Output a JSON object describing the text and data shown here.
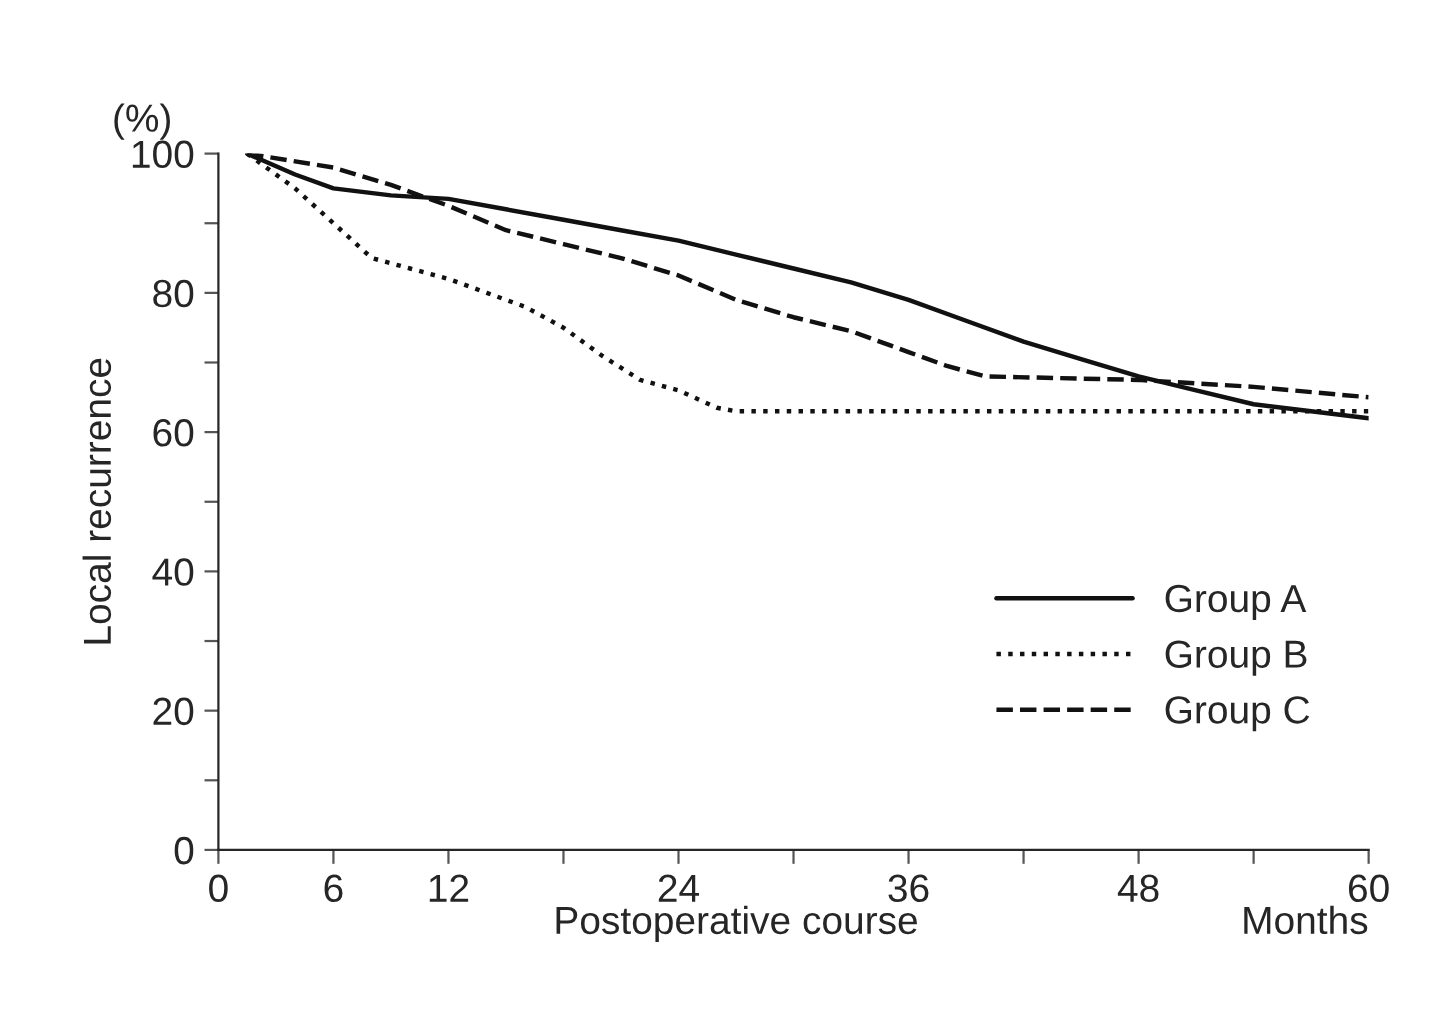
{
  "chart_data": {
    "type": "line",
    "xlabel": "Postoperative course",
    "ylabel": "Local recurrence",
    "annotations": [
      "(%)",
      "Months"
    ],
    "xlim": [
      0,
      60
    ],
    "ylim": [
      0,
      100
    ],
    "xticks": [
      0,
      6,
      12,
      {
        "value": 18,
        "label": null
      },
      24,
      {
        "value": 30,
        "label": null
      },
      36,
      {
        "value": 42,
        "label": null
      },
      48,
      {
        "value": 54,
        "label": null
      },
      60
    ],
    "yticks": [
      0,
      {
        "value": 10,
        "label": null
      },
      20,
      {
        "value": 30,
        "label": null
      },
      40,
      {
        "value": 50,
        "label": null
      },
      60,
      {
        "value": 70,
        "label": null
      },
      80,
      {
        "value": 90,
        "label": null
      },
      100
    ],
    "grid": false,
    "legend": "bottom right",
    "series": [
      {
        "name": "Group A",
        "color": "#111111",
        "line_style": "solid",
        "x": [
          1.5,
          4,
          6,
          9,
          12,
          15,
          18,
          21,
          24,
          27,
          30,
          33,
          36,
          39,
          42,
          45,
          48,
          51,
          54,
          57,
          60
        ],
        "values": [
          100,
          97,
          95,
          94,
          93.5,
          92,
          90.5,
          89,
          87.5,
          85.5,
          83.5,
          81.5,
          79,
          76,
          73,
          70.5,
          68,
          66,
          64,
          63,
          62
        ]
      },
      {
        "name": "Group B",
        "color": "#111111",
        "line_style": "dotted",
        "x": [
          1.5,
          4,
          6,
          8,
          10,
          12,
          14,
          16,
          18,
          20,
          22,
          24,
          26,
          27,
          60
        ],
        "values": [
          100,
          95,
          90,
          85,
          83.5,
          82,
          80,
          78,
          75,
          71,
          67.5,
          66,
          63.5,
          63,
          63
        ]
      },
      {
        "name": "Group C",
        "color": "#111111",
        "line_style": "dashed",
        "x": [
          1.5,
          6,
          9,
          12,
          15,
          18,
          21,
          24,
          27,
          30,
          33,
          36,
          38,
          40,
          48,
          54,
          60
        ],
        "values": [
          100,
          98,
          95.5,
          92.5,
          89,
          87,
          85,
          82.5,
          79,
          76.5,
          74.5,
          71.5,
          69.5,
          68,
          67.5,
          66.5,
          65
        ]
      }
    ]
  }
}
